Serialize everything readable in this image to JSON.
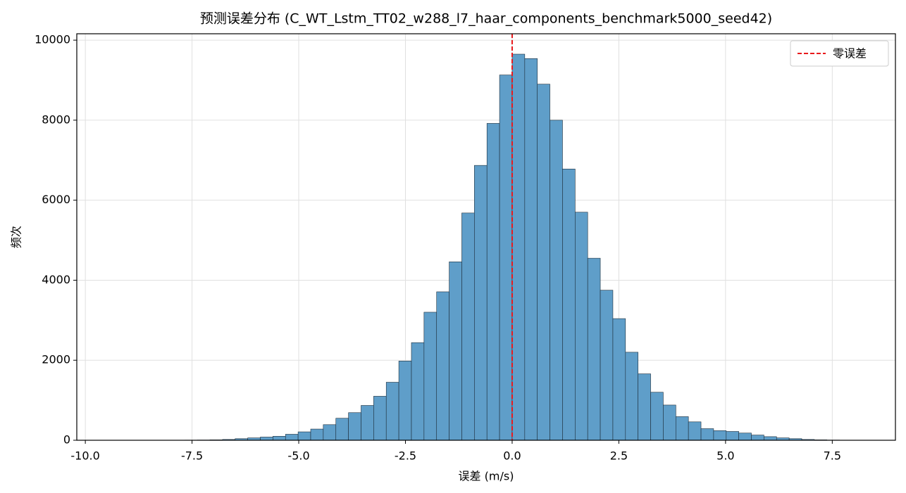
{
  "chart_data": {
    "type": "histogram",
    "title": "预测误差分布 (C_WT_Lstm_TT02_w288_l7_haar_components_benchmark5000_seed42)",
    "xlabel": "误差 (m/s)",
    "ylabel": "频次",
    "bins": [
      -9.735,
      -9.44,
      -9.145,
      -8.85,
      -8.555,
      -8.26,
      -7.965,
      -7.67,
      -7.375,
      -7.08,
      -6.785,
      -6.49,
      -6.195,
      -5.9,
      -5.605,
      -5.31,
      -5.015,
      -4.72,
      -4.425,
      -4.13,
      -3.835,
      -3.54,
      -3.245,
      -2.95,
      -2.655,
      -2.36,
      -2.065,
      -1.77,
      -1.475,
      -1.18,
      -0.885,
      -0.59,
      -0.295,
      0,
      0.295,
      0.59,
      0.885,
      1.18,
      1.475,
      1.77,
      2.065,
      2.36,
      2.655,
      2.95,
      3.245,
      3.54,
      3.835,
      4.13,
      4.425,
      4.72,
      5.015,
      5.31,
      5.605,
      5.9,
      6.195,
      6.49,
      6.785,
      7.08,
      7.375,
      7.67,
      7.965
    ],
    "counts": [
      1,
      0,
      1,
      1,
      1,
      2,
      3,
      4,
      6,
      10,
      20,
      40,
      60,
      80,
      100,
      150,
      210,
      280,
      390,
      550,
      690,
      870,
      1100,
      1450,
      1980,
      2440,
      3200,
      3710,
      4460,
      5680,
      6870,
      7920,
      9130,
      9650,
      9540,
      8900,
      8000,
      6780,
      5700,
      4550,
      3750,
      3040,
      2200,
      1660,
      1200,
      880,
      590,
      460,
      290,
      240,
      220,
      180,
      130,
      90,
      60,
      40,
      20,
      10,
      5,
      2
    ],
    "color": "#5f9ec9",
    "vline": {
      "x": 0,
      "label": "零误差",
      "color": "#e8191c"
    },
    "xlim": [
      -10.2,
      8.98
    ],
    "xticks": [
      {
        "value": -10,
        "label": "-10.0"
      },
      -7.5,
      {
        "value": -5,
        "label": "-5.0"
      },
      -2.5,
      {
        "value": 0,
        "label": "0.0"
      },
      2.5,
      {
        "value": 5,
        "label": "5.0"
      },
      7.5
    ],
    "ylim": [
      0,
      10160
    ],
    "yticks": [
      0,
      2000,
      4000,
      6000,
      8000,
      10000
    ],
    "grid": true,
    "legend": "upper right"
  }
}
